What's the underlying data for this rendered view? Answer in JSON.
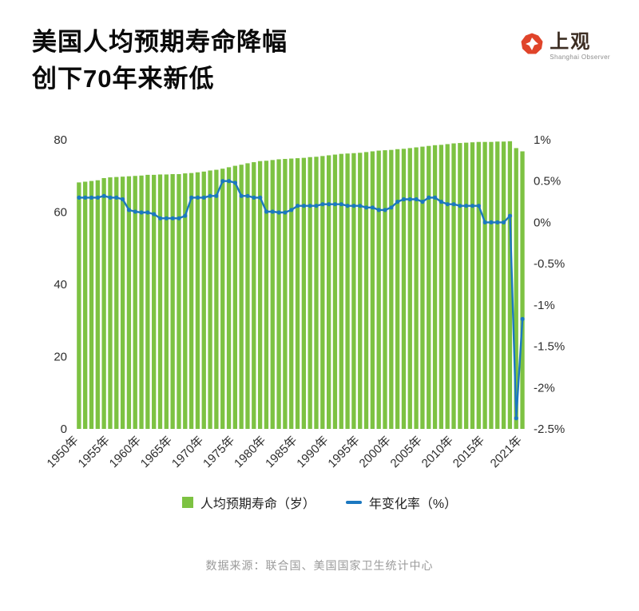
{
  "header": {
    "title_line1": "美国人均预期寿命降幅",
    "title_line2": "创下70年来新低",
    "logo": {
      "name": "上观",
      "subtitle": "Shanghai Observer",
      "accent_color": "#E0442A",
      "text_color": "#3D2E23"
    }
  },
  "chart_data": {
    "type": "bar+line",
    "x_axis": {
      "start_year": 1950,
      "end_year": 2021,
      "tick_labels": [
        "1950年",
        "1955年",
        "1960年",
        "1965年",
        "1970年",
        "1975年",
        "1980年",
        "1985年",
        "1990年",
        "1995年",
        "2000年",
        "2005年",
        "2010年",
        "2015年",
        "2021年"
      ]
    },
    "left_axis": {
      "min": 0,
      "max": 80,
      "ticks": [
        80,
        60,
        40,
        20,
        0
      ]
    },
    "right_axis": {
      "min": -2.5,
      "max": 1,
      "tick_labels": [
        "1%",
        "0.5%",
        "0%",
        "-0.5%",
        "-1%",
        "-1.5%",
        "-2%",
        "-2.5%"
      ]
    },
    "bar_series": {
      "name": "人均预期寿命（岁）",
      "values": [
        68.2,
        68.4,
        68.6,
        68.8,
        69.4,
        69.6,
        69.7,
        69.8,
        69.9,
        70.0,
        70.1,
        70.3,
        70.3,
        70.4,
        70.4,
        70.5,
        70.5,
        70.7,
        70.8,
        71.0,
        71.2,
        71.5,
        71.7,
        72.0,
        72.4,
        72.8,
        73.1,
        73.5,
        73.8,
        74.1,
        74.2,
        74.4,
        74.6,
        74.7,
        74.8,
        74.9,
        75.0,
        75.2,
        75.3,
        75.5,
        75.7,
        75.9,
        76.1,
        76.2,
        76.3,
        76.4,
        76.6,
        76.8,
        77.0,
        77.1,
        77.2,
        77.4,
        77.5,
        77.7,
        77.9,
        78.1,
        78.3,
        78.5,
        78.6,
        78.8,
        79.0,
        79.1,
        79.2,
        79.3,
        79.4,
        79.4,
        79.4,
        79.5,
        79.5,
        79.6,
        77.7,
        76.8
      ]
    },
    "line_series": {
      "name": "年变化率（%）",
      "values": [
        0.3,
        0.3,
        0.3,
        0.3,
        0.32,
        0.3,
        0.3,
        0.28,
        0.15,
        0.13,
        0.12,
        0.12,
        0.1,
        0.05,
        0.05,
        0.05,
        0.05,
        0.08,
        0.3,
        0.3,
        0.3,
        0.32,
        0.32,
        0.5,
        0.5,
        0.48,
        0.32,
        0.32,
        0.3,
        0.3,
        0.13,
        0.13,
        0.12,
        0.12,
        0.15,
        0.2,
        0.2,
        0.2,
        0.2,
        0.22,
        0.22,
        0.22,
        0.22,
        0.2,
        0.2,
        0.2,
        0.18,
        0.18,
        0.15,
        0.15,
        0.18,
        0.25,
        0.28,
        0.28,
        0.28,
        0.25,
        0.3,
        0.3,
        0.25,
        0.22,
        0.22,
        0.2,
        0.2,
        0.2,
        0.2,
        0.0,
        0.0,
        0.0,
        0.0,
        0.08,
        -2.37,
        -1.17
      ]
    },
    "colors": {
      "bar": "#7DC242",
      "line": "#1B78C0"
    }
  },
  "footer": {
    "source": "数据来源：联合国、美国国家卫生统计中心"
  }
}
